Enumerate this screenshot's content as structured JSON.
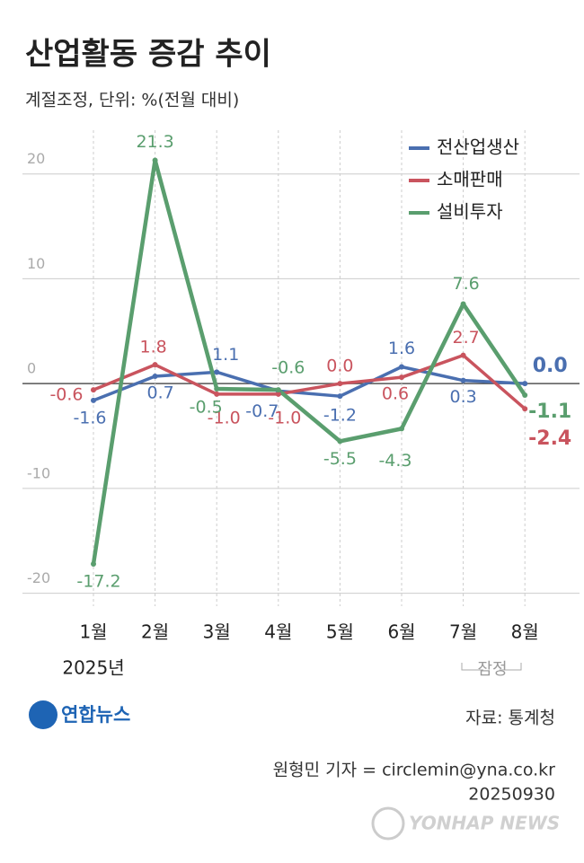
{
  "chart_data": {
    "type": "line",
    "title": "산업활동 증감 추이",
    "subtitle": "계절조정, 단위: %(전월 대비)",
    "categories": [
      "1월",
      "2월",
      "3월",
      "4월",
      "5월",
      "6월",
      "7월",
      "8월"
    ],
    "series": [
      {
        "name": "전산업생산",
        "color": "#4a6fb0",
        "values": [
          -1.6,
          0.7,
          1.1,
          -0.7,
          -1.2,
          1.6,
          0.3,
          0.0
        ],
        "value_labels": [
          "-1.6",
          "0.7",
          "1.1",
          "-0.7",
          "-1.2",
          "1.6",
          "0.3",
          "0.0"
        ]
      },
      {
        "name": "소매판매",
        "color": "#c9545e",
        "values": [
          -0.6,
          1.8,
          -1.0,
          -1.0,
          0.0,
          0.6,
          2.7,
          -2.4
        ],
        "value_labels": [
          "-0.6",
          "1.8",
          "-1.0",
          "-1.0",
          "0.0",
          "0.6",
          "2.7",
          "-2.4"
        ]
      },
      {
        "name": "설비투자",
        "color": "#5a9e6e",
        "values": [
          -17.2,
          21.3,
          -0.5,
          -0.6,
          -5.5,
          -4.3,
          7.6,
          -1.1
        ],
        "value_labels": [
          "-17.2",
          "21.3",
          "-0.5",
          "-0.6",
          "-5.5",
          "-4.3",
          "7.6",
          "-1.1"
        ]
      }
    ],
    "ylim": [
      -22,
      24
    ],
    "yticks": [
      20,
      10,
      0,
      -10,
      -20
    ],
    "grid": true,
    "annotations": {
      "year": "2025년",
      "provisional": "잠정",
      "source": "자료: 통계청",
      "reporter": "원형민 기자 = circlemin@yna.co.kr",
      "date": "20250930",
      "logo": "연합뉴스",
      "watermark": "YONHAP NEWS"
    }
  }
}
